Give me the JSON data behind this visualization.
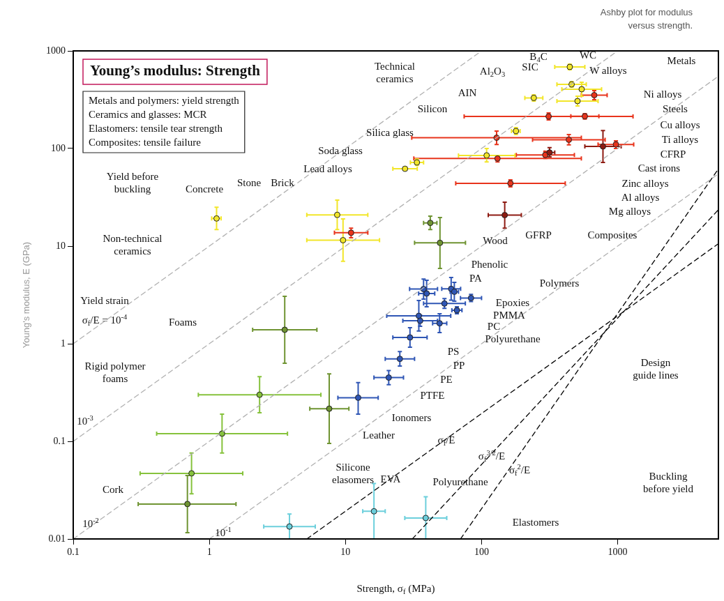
{
  "chart_data": {
    "type": "scatter",
    "title": "Young’s modulus: Strength",
    "subtitle": "Ashby plot for modulus versus strength.",
    "xlabel": "Strength, σ$_{f}$ (MPa)",
    "ylabel": "Young's modulus, E (GPa)",
    "xlim": [
      0.1,
      5500
    ],
    "ylim": [
      0.01,
      1000
    ],
    "xticks": [
      0.1,
      1,
      10,
      100,
      1000
    ],
    "yticks": [
      0.01,
      0.1,
      1,
      10,
      100,
      1000
    ],
    "log": "xy",
    "grid": false,
    "legend": false,
    "marker": "circle",
    "annotations": [
      "Metals and polymers: yield strength",
      "Ceramics and glasses: MCR",
      "Elastomers: tensile tear strength",
      "Composites: tensile failure",
      "Technical\nceramics",
      "Metals",
      "Composites",
      "Polymers",
      "Foams",
      "Non-technical\nceramics",
      "Elastomers",
      "Rigid polymer\nfoams",
      "B$_{4}$C",
      "Al$_{2}$O$_{3}$",
      "SIC",
      "WC",
      "W alloys",
      "AIN",
      "Silicon",
      "Silica glass",
      "Soda glass",
      "Lead alloys",
      "Stone",
      "Brick",
      "Concrete",
      "Ni alloys",
      "Steels",
      "Cu alloys",
      "Ti alloys",
      "CFRP",
      "Cast irons",
      "Zinc alloys",
      "Al alloys",
      "Mg alloys",
      "GFRP",
      "Wood",
      "Phenolic",
      "PA",
      "Epoxies",
      "PMMA",
      "PC",
      "Polyurethane",
      "PS",
      "PP",
      "PE",
      "PTFE",
      "Ionomers",
      "Leather",
      "Silicone\nelasomers",
      "EVA",
      "Polyurethane",
      "Cork",
      "Yield before\nbuckling",
      "Yield strain",
      "σ$_{f}$/E = 10$^{-4}$",
      "10$^{-3}$",
      "10$^{-2}$",
      "10$^{-1}$",
      "σ$_{f}$/E",
      "σ$_{f}$$^{3/2}$/E",
      "σ$_{f}$$^{2}$/E",
      "Design\nguide lines",
      "Buckling\nbefore yield"
    ],
    "series": [
      {
        "color": "#f2e62a",
        "x": [
          1.13,
          8.7,
          9.6
        ],
        "values": [
          19.2,
          20.9,
          11.5
        ],
        "xerrors": [
          [
            1.04,
            1.22
          ],
          [
            5.2,
            14.6
          ],
          [
            5.2,
            17.8
          ]
        ],
        "errors": [
          [
            14.8,
            25
          ],
          [
            14.8,
            29.6
          ],
          [
            7,
            19
          ]
        ]
      },
      {
        "color": "#8e1b12",
        "x": [
          780,
          148,
          316
        ],
        "values": [
          105,
          20.8,
          91
        ],
        "xerrors": [
          [
            574,
            1061
          ],
          [
            112,
            196
          ],
          [
            290,
            345
          ]
        ],
        "errors": [
          [
            72,
            153
          ],
          [
            15.3,
            28.2
          ],
          [
            82,
            102
          ]
        ]
      },
      {
        "color": "#e8341c",
        "x": [
          311,
          574,
          129,
          438,
          971,
          131,
          294,
          163,
          673,
          11
        ],
        "values": [
          213,
          214,
          129,
          123,
          110,
          79,
          86,
          44,
          352,
          13.7
        ],
        "xerrors": [
          [
            74.5,
            1297
          ],
          [
            453,
            728
          ],
          [
            30.7,
            541
          ],
          [
            237,
            809
          ],
          [
            718,
            1312
          ],
          [
            31.8,
            541
          ],
          [
            180,
            481
          ],
          [
            64.6,
            412
          ],
          [
            541,
            837
          ],
          [
            8.3,
            14.6
          ]
        ],
        "errors": [
          [
            196,
            231
          ],
          [
            200,
            228
          ],
          [
            110,
            151
          ],
          [
            109,
            139
          ],
          [
            100,
            120
          ],
          [
            73,
            85
          ],
          [
            79,
            93.6
          ],
          [
            40.5,
            47.7
          ],
          [
            316,
            392
          ],
          [
            12.2,
            15.3
          ]
        ]
      },
      {
        "color": "#f2e62a",
        "x": [
          445,
          459,
          544,
          507,
          242,
          179,
          33.5,
          27.4,
          109
        ],
        "values": [
          685,
          454,
          405,
          306,
          330,
          151,
          72,
          62,
          85
        ],
        "xerrors": [
          [
            345,
            574
          ],
          [
            358,
            588
          ],
          [
            389,
            762
          ],
          [
            358,
            718
          ],
          [
            208,
            282
          ],
          [
            166,
            192
          ],
          [
            30,
            37.5
          ],
          [
            22.3,
            33.7
          ],
          [
            67.7,
            176
          ]
        ],
        "errors": [
          [
            641,
            731
          ],
          [
            425,
            485
          ],
          [
            343,
            477
          ],
          [
            273,
            343
          ],
          [
            306,
            355
          ],
          [
            139,
            164
          ],
          [
            67,
            78
          ],
          [
            60,
            64
          ],
          [
            73,
            100
          ]
        ]
      },
      {
        "color": "#86c23c",
        "x": [
          2.34,
          1.24,
          0.74
        ],
        "values": [
          0.3,
          0.12,
          0.047
        ],
        "xerrors": [
          [
            0.83,
            6.6
          ],
          [
            0.41,
            3.75
          ],
          [
            0.31,
            1.76
          ]
        ],
        "errors": [
          [
            0.196,
            0.46
          ],
          [
            0.076,
            0.19
          ],
          [
            0.029,
            0.076
          ]
        ]
      },
      {
        "color": "#6f9432",
        "x": [
          49.5,
          42,
          3.58,
          7.6,
          0.69
        ],
        "values": [
          10.8,
          17.3,
          1.39,
          0.216,
          0.0228
        ],
        "xerrors": [
          [
            32.2,
            76.2
          ],
          [
            37.5,
            47
          ],
          [
            2.08,
            6.17
          ],
          [
            5.47,
            10.6
          ],
          [
            0.3,
            1.57
          ]
        ],
        "errors": [
          [
            5.9,
            19.6
          ],
          [
            14.8,
            20.3
          ],
          [
            0.63,
            3.06
          ],
          [
            0.095,
            0.49
          ],
          [
            0.0116,
            0.0447
          ]
        ]
      },
      {
        "color": "#2f56b5",
        "x": [
          34.6,
          29.8,
          25.1,
          20.8,
          12.4,
          39.5,
          37.5,
          59.8,
          63.1,
          83.7,
          53.4,
          65.9,
          49.2,
          35.4
        ],
        "values": [
          1.93,
          1.16,
          0.7,
          0.45,
          0.28,
          3.27,
          3.63,
          3.65,
          3.41,
          2.94,
          2.58,
          2.2,
          1.62,
          1.72
        ],
        "xerrors": [
          [
            20.1,
            59.4
          ],
          [
            22.3,
            39.8
          ],
          [
            19.6,
            32.2
          ],
          [
            16.2,
            26.7
          ],
          [
            8.8,
            17.4
          ],
          [
            34.5,
            45.3
          ],
          [
            29.6,
            47.5
          ],
          [
            51,
            70.2
          ],
          [
            58.8,
            67.7
          ],
          [
            70,
            100
          ],
          [
            37.5,
            76
          ],
          [
            60.5,
            71.8
          ],
          [
            43.7,
            55.5
          ],
          [
            26.4,
            47.5
          ]
        ],
        "errors": [
          [
            1.35,
            2.77
          ],
          [
            0.92,
            1.46
          ],
          [
            0.59,
            0.83
          ],
          [
            0.38,
            0.53
          ],
          [
            0.19,
            0.4
          ],
          [
            2.39,
            4.47
          ],
          [
            2.87,
            4.6
          ],
          [
            2.8,
            4.77
          ],
          [
            2.73,
            4.25
          ],
          [
            2.7,
            3.2
          ],
          [
            2.3,
            2.9
          ],
          [
            2.03,
            2.39
          ],
          [
            1.3,
            2.03
          ],
          [
            1.51,
            1.96
          ]
        ]
      },
      {
        "color": "#6ccfdc",
        "x": [
          3.88,
          16.2,
          38.9
        ],
        "values": [
          0.0134,
          0.0192,
          0.0164
        ],
        "xerrors": [
          [
            2.51,
            6
          ],
          [
            13.4,
            19.6
          ],
          [
            27.3,
            55.5
          ]
        ],
        "errors": [
          [
            0.01,
            0.018
          ],
          [
            0.01,
            0.037
          ],
          [
            0.01,
            0.027
          ]
        ]
      },
      {
        "type": "line",
        "color": "#b0b0b0",
        "line_style": "dashed",
        "marker": "none",
        "x": [
          0.1,
          100
        ],
        "values": [
          1,
          1000
        ]
      },
      {
        "type": "line",
        "color": "#b0b0b0",
        "line_style": "dashed",
        "marker": "none",
        "x": [
          0.1,
          1000
        ],
        "values": [
          0.1,
          1000
        ]
      },
      {
        "type": "line",
        "color": "#b0b0b0",
        "line_style": "dashed",
        "marker": "none",
        "x": [
          0.1,
          5500
        ],
        "values": [
          0.01,
          550
        ]
      },
      {
        "type": "line",
        "color": "#b0b0b0",
        "line_style": "dashed",
        "marker": "none",
        "x": [
          1,
          5500
        ],
        "values": [
          0.01,
          55
        ]
      },
      {
        "type": "line",
        "color": "#000000",
        "line_style": "dashed",
        "marker": "none",
        "x": [
          5.2,
          5500
        ],
        "values": [
          0.01,
          10.6
        ]
      },
      {
        "type": "line",
        "color": "#000000",
        "line_style": "dashed",
        "marker": "none",
        "x": [
          31,
          5500
        ],
        "values": [
          0.01,
          23.6
        ]
      },
      {
        "type": "line",
        "color": "#000000",
        "line_style": "dashed",
        "marker": "none",
        "x": [
          70,
          5500
        ],
        "values": [
          0.01,
          61.7
        ]
      }
    ]
  }
}
